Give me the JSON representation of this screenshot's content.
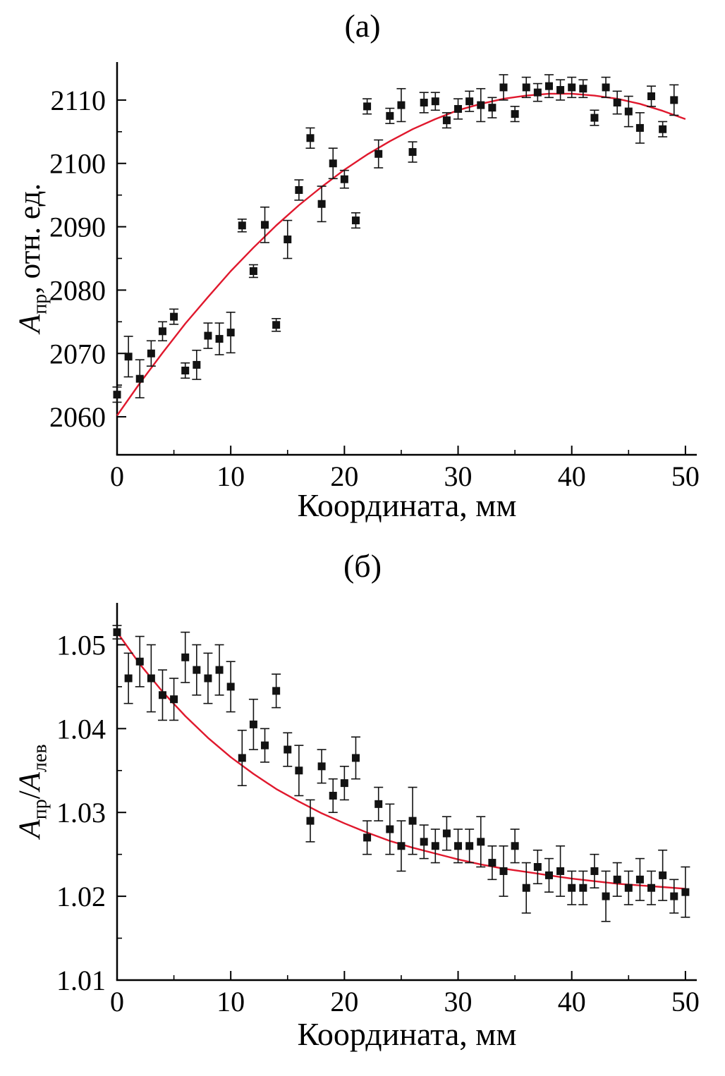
{
  "page": {
    "background": "#ffffff",
    "text_color": "#000000"
  },
  "chart_data": [
    {
      "type": "scatter",
      "title": "(а)",
      "xlabel": "Координата, мм",
      "ylabel": "Aпр, отн. ед.",
      "ylabel_parts": {
        "var": "A",
        "sub": "пр",
        "rest": ", отн. ед."
      },
      "xlim": [
        0,
        51
      ],
      "ylim": [
        2054,
        2116
      ],
      "xticks": [
        0,
        10,
        20,
        30,
        40,
        50
      ],
      "yticks": [
        2060,
        2070,
        2080,
        2090,
        2100,
        2110
      ],
      "grid": false,
      "legend": "none",
      "marker": "square",
      "marker_color": "#121212",
      "errorbar_color": "#121212",
      "fit_color": "#e0182d",
      "points": [
        {
          "x": 0,
          "y": 2063.5,
          "e": 1.2
        },
        {
          "x": 1,
          "y": 2069.5,
          "e": 3.2
        },
        {
          "x": 2,
          "y": 2066.0,
          "e": 3.0
        },
        {
          "x": 3,
          "y": 2070.0,
          "e": 2.0
        },
        {
          "x": 4,
          "y": 2073.5,
          "e": 1.5
        },
        {
          "x": 5,
          "y": 2075.8,
          "e": 1.2
        },
        {
          "x": 6,
          "y": 2067.3,
          "e": 1.2
        },
        {
          "x": 7,
          "y": 2068.2,
          "e": 2.3
        },
        {
          "x": 8,
          "y": 2072.8,
          "e": 2.0
        },
        {
          "x": 9,
          "y": 2072.3,
          "e": 2.5
        },
        {
          "x": 10,
          "y": 2073.3,
          "e": 3.2
        },
        {
          "x": 11,
          "y": 2090.2,
          "e": 1.0
        },
        {
          "x": 12,
          "y": 2083.0,
          "e": 1.0
        },
        {
          "x": 13,
          "y": 2090.3,
          "e": 2.8
        },
        {
          "x": 14,
          "y": 2074.5,
          "e": 1.0
        },
        {
          "x": 15,
          "y": 2088.0,
          "e": 3.0
        },
        {
          "x": 16,
          "y": 2095.8,
          "e": 1.6
        },
        {
          "x": 17,
          "y": 2104.0,
          "e": 1.6
        },
        {
          "x": 18,
          "y": 2093.6,
          "e": 2.8
        },
        {
          "x": 19,
          "y": 2100.0,
          "e": 2.4
        },
        {
          "x": 20,
          "y": 2097.5,
          "e": 1.4
        },
        {
          "x": 21,
          "y": 2091.0,
          "e": 1.2
        },
        {
          "x": 22,
          "y": 2109.0,
          "e": 1.2
        },
        {
          "x": 23,
          "y": 2101.5,
          "e": 2.2
        },
        {
          "x": 24,
          "y": 2107.5,
          "e": 1.2
        },
        {
          "x": 25,
          "y": 2109.2,
          "e": 2.6
        },
        {
          "x": 26,
          "y": 2101.8,
          "e": 1.6
        },
        {
          "x": 27,
          "y": 2109.6,
          "e": 1.6
        },
        {
          "x": 28,
          "y": 2109.8,
          "e": 1.4
        },
        {
          "x": 29,
          "y": 2106.8,
          "e": 1.2
        },
        {
          "x": 30,
          "y": 2108.6,
          "e": 1.6
        },
        {
          "x": 31,
          "y": 2109.8,
          "e": 1.6
        },
        {
          "x": 32,
          "y": 2109.2,
          "e": 2.6
        },
        {
          "x": 33,
          "y": 2108.8,
          "e": 1.6
        },
        {
          "x": 34,
          "y": 2112.0,
          "e": 2.0
        },
        {
          "x": 35,
          "y": 2107.8,
          "e": 1.2
        },
        {
          "x": 36,
          "y": 2112.0,
          "e": 1.6
        },
        {
          "x": 37,
          "y": 2111.2,
          "e": 1.4
        },
        {
          "x": 38,
          "y": 2112.2,
          "e": 1.8
        },
        {
          "x": 39,
          "y": 2111.6,
          "e": 1.6
        },
        {
          "x": 40,
          "y": 2112.0,
          "e": 1.6
        },
        {
          "x": 41,
          "y": 2111.8,
          "e": 1.4
        },
        {
          "x": 42,
          "y": 2107.2,
          "e": 1.2
        },
        {
          "x": 43,
          "y": 2112.0,
          "e": 1.6
        },
        {
          "x": 44,
          "y": 2109.6,
          "e": 1.8
        },
        {
          "x": 45,
          "y": 2108.2,
          "e": 2.4
        },
        {
          "x": 46,
          "y": 2105.6,
          "e": 2.4
        },
        {
          "x": 47,
          "y": 2110.6,
          "e": 1.6
        },
        {
          "x": 48,
          "y": 2105.4,
          "e": 1.2
        },
        {
          "x": 49,
          "y": 2110.0,
          "e": 2.4
        }
      ],
      "fit_curve": {
        "model": "quadratic rise with maximum near x=39, y=2111",
        "points": [
          [
            0,
            2060.2
          ],
          [
            2,
            2065.3
          ],
          [
            4,
            2070.1
          ],
          [
            6,
            2074.7
          ],
          [
            8,
            2078.9
          ],
          [
            10,
            2083.0
          ],
          [
            12,
            2086.7
          ],
          [
            14,
            2090.2
          ],
          [
            16,
            2093.4
          ],
          [
            18,
            2096.3
          ],
          [
            20,
            2099.0
          ],
          [
            22,
            2101.4
          ],
          [
            24,
            2103.5
          ],
          [
            26,
            2105.4
          ],
          [
            28,
            2107.0
          ],
          [
            30,
            2108.4
          ],
          [
            32,
            2109.4
          ],
          [
            34,
            2110.2
          ],
          [
            36,
            2110.7
          ],
          [
            38,
            2111.0
          ],
          [
            40,
            2111.0
          ],
          [
            42,
            2110.7
          ],
          [
            44,
            2110.2
          ],
          [
            46,
            2109.4
          ],
          [
            48,
            2108.3
          ],
          [
            50,
            2107.0
          ]
        ]
      }
    },
    {
      "type": "scatter",
      "title": "(б)",
      "xlabel": "Координата, мм",
      "ylabel": "Aпр/Aлев",
      "ylabel_parts": {
        "num_var": "A",
        "num_sub": "пр",
        "slash": "/",
        "den_var": "A",
        "den_sub": "лев"
      },
      "xlim": [
        0,
        51
      ],
      "ylim": [
        1.01,
        1.055
      ],
      "xticks": [
        0,
        10,
        20,
        30,
        40,
        50
      ],
      "yticks": [
        1.01,
        1.02,
        1.03,
        1.04,
        1.05
      ],
      "grid": false,
      "legend": "none",
      "marker": "square",
      "marker_color": "#121212",
      "errorbar_color": "#121212",
      "fit_color": "#e0182d",
      "points": [
        {
          "x": 0,
          "y": 1.0515,
          "e": 0.0008
        },
        {
          "x": 1,
          "y": 1.046,
          "e": 0.003
        },
        {
          "x": 2,
          "y": 1.048,
          "e": 0.003
        },
        {
          "x": 3,
          "y": 1.046,
          "e": 0.004
        },
        {
          "x": 4,
          "y": 1.044,
          "e": 0.003
        },
        {
          "x": 5,
          "y": 1.0435,
          "e": 0.0025
        },
        {
          "x": 6,
          "y": 1.0485,
          "e": 0.003
        },
        {
          "x": 7,
          "y": 1.047,
          "e": 0.003
        },
        {
          "x": 8,
          "y": 1.046,
          "e": 0.003
        },
        {
          "x": 9,
          "y": 1.047,
          "e": 0.003
        },
        {
          "x": 10,
          "y": 1.045,
          "e": 0.003
        },
        {
          "x": 11,
          "y": 1.0365,
          "e": 0.0033
        },
        {
          "x": 12,
          "y": 1.0405,
          "e": 0.003
        },
        {
          "x": 13,
          "y": 1.038,
          "e": 0.002
        },
        {
          "x": 14,
          "y": 1.0445,
          "e": 0.002
        },
        {
          "x": 15,
          "y": 1.0375,
          "e": 0.002
        },
        {
          "x": 16,
          "y": 1.035,
          "e": 0.003
        },
        {
          "x": 17,
          "y": 1.029,
          "e": 0.0025
        },
        {
          "x": 18,
          "y": 1.0355,
          "e": 0.002
        },
        {
          "x": 19,
          "y": 1.032,
          "e": 0.002
        },
        {
          "x": 20,
          "y": 1.0335,
          "e": 0.002
        },
        {
          "x": 21,
          "y": 1.0365,
          "e": 0.0025
        },
        {
          "x": 22,
          "y": 1.027,
          "e": 0.002
        },
        {
          "x": 23,
          "y": 1.031,
          "e": 0.002
        },
        {
          "x": 24,
          "y": 1.028,
          "e": 0.003
        },
        {
          "x": 25,
          "y": 1.026,
          "e": 0.003
        },
        {
          "x": 26,
          "y": 1.029,
          "e": 0.004
        },
        {
          "x": 27,
          "y": 1.0265,
          "e": 0.002
        },
        {
          "x": 28,
          "y": 1.026,
          "e": 0.002
        },
        {
          "x": 29,
          "y": 1.0275,
          "e": 0.002
        },
        {
          "x": 30,
          "y": 1.026,
          "e": 0.002
        },
        {
          "x": 31,
          "y": 1.026,
          "e": 0.002
        },
        {
          "x": 32,
          "y": 1.0265,
          "e": 0.003
        },
        {
          "x": 33,
          "y": 1.024,
          "e": 0.002
        },
        {
          "x": 34,
          "y": 1.023,
          "e": 0.003
        },
        {
          "x": 35,
          "y": 1.026,
          "e": 0.002
        },
        {
          "x": 36,
          "y": 1.021,
          "e": 0.003
        },
        {
          "x": 37,
          "y": 1.0235,
          "e": 0.002
        },
        {
          "x": 38,
          "y": 1.0225,
          "e": 0.002
        },
        {
          "x": 39,
          "y": 1.023,
          "e": 0.003
        },
        {
          "x": 40,
          "y": 1.021,
          "e": 0.002
        },
        {
          "x": 41,
          "y": 1.021,
          "e": 0.002
        },
        {
          "x": 42,
          "y": 1.023,
          "e": 0.002
        },
        {
          "x": 43,
          "y": 1.02,
          "e": 0.003
        },
        {
          "x": 44,
          "y": 1.022,
          "e": 0.002
        },
        {
          "x": 45,
          "y": 1.021,
          "e": 0.002
        },
        {
          "x": 46,
          "y": 1.022,
          "e": 0.0025
        },
        {
          "x": 47,
          "y": 1.021,
          "e": 0.002
        },
        {
          "x": 48,
          "y": 1.0225,
          "e": 0.003
        },
        {
          "x": 49,
          "y": 1.02,
          "e": 0.002
        },
        {
          "x": 50,
          "y": 1.0205,
          "e": 0.003
        }
      ],
      "fit_curve": {
        "model": "exponential decay from 1.0515 toward ~1.020",
        "points": [
          [
            0,
            1.0515
          ],
          [
            2,
            1.0477
          ],
          [
            4,
            1.0444
          ],
          [
            6,
            1.0415
          ],
          [
            8,
            1.0389
          ],
          [
            10,
            1.0366
          ],
          [
            12,
            1.0346
          ],
          [
            14,
            1.0328
          ],
          [
            16,
            1.0313
          ],
          [
            18,
            1.0299
          ],
          [
            20,
            1.0287
          ],
          [
            22,
            1.0276
          ],
          [
            24,
            1.0266
          ],
          [
            26,
            1.0258
          ],
          [
            28,
            1.0251
          ],
          [
            30,
            1.0244
          ],
          [
            32,
            1.0238
          ],
          [
            34,
            1.0233
          ],
          [
            36,
            1.0229
          ],
          [
            38,
            1.0225
          ],
          [
            40,
            1.0221
          ],
          [
            42,
            1.0218
          ],
          [
            44,
            1.0215
          ],
          [
            46,
            1.0213
          ],
          [
            48,
            1.0211
          ],
          [
            50,
            1.0209
          ]
        ]
      }
    }
  ]
}
